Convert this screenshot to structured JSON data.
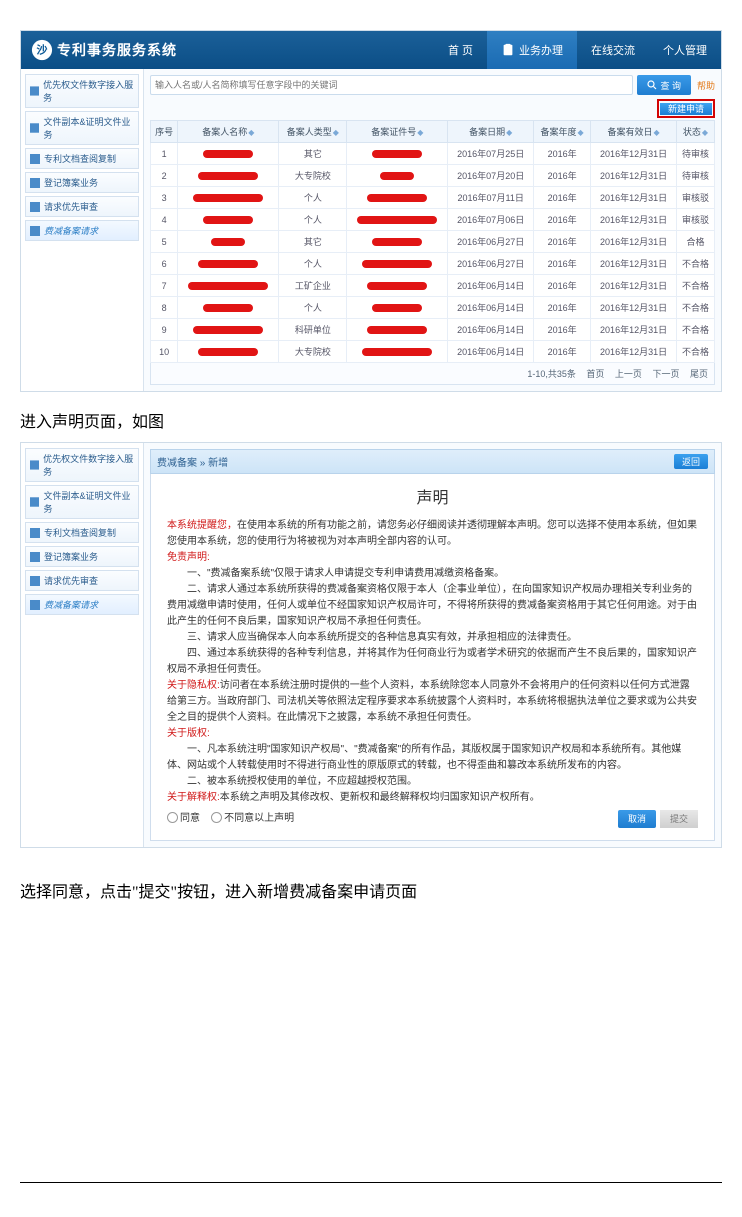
{
  "header": {
    "system_title": "专利事务服务系统",
    "nav": [
      "首 页",
      "业务办理",
      "在线交流",
      "个人管理"
    ],
    "active_nav_index": 1
  },
  "sidebar": {
    "items": [
      "优先权文件数字接入服务",
      "文件副本&证明文件业务",
      "专利文档查阅复制",
      "登记簿案业务",
      "请求优先审查",
      "费减备案请求"
    ],
    "active_index": 5
  },
  "search": {
    "placeholder": "输入人名或/人名简称填写任意字段中的关键词",
    "btn": "查 询",
    "help": "帮助"
  },
  "new_btn": "新建申请",
  "table": {
    "columns": [
      "序号",
      "备案人名称",
      "备案人类型",
      "备案证件号",
      "备案日期",
      "备案年度",
      "备案有效日",
      "状态"
    ],
    "rows": [
      {
        "idx": "1",
        "type": "其它",
        "date": "2016年07月25日",
        "year": "2016年",
        "valid": "2016年12月31日",
        "status": "待审核"
      },
      {
        "idx": "2",
        "type": "大专院校",
        "date": "2016年07月20日",
        "year": "2016年",
        "valid": "2016年12月31日",
        "status": "待审核"
      },
      {
        "idx": "3",
        "type": "个人",
        "date": "2016年07月11日",
        "year": "2016年",
        "valid": "2016年12月31日",
        "status": "审核驳"
      },
      {
        "idx": "4",
        "type": "个人",
        "date": "2016年07月06日",
        "year": "2016年",
        "valid": "2016年12月31日",
        "status": "审核驳"
      },
      {
        "idx": "5",
        "type": "其它",
        "date": "2016年06月27日",
        "year": "2016年",
        "valid": "2016年12月31日",
        "status": "合格"
      },
      {
        "idx": "6",
        "type": "个人",
        "date": "2016年06月27日",
        "year": "2016年",
        "valid": "2016年12月31日",
        "status": "不合格"
      },
      {
        "idx": "7",
        "type": "工矿企业",
        "date": "2016年06月14日",
        "year": "2016年",
        "valid": "2016年12月31日",
        "status": "不合格"
      },
      {
        "idx": "8",
        "type": "个人",
        "date": "2016年06月14日",
        "year": "2016年",
        "valid": "2016年12月31日",
        "status": "不合格"
      },
      {
        "idx": "9",
        "type": "科研单位",
        "date": "2016年06月14日",
        "year": "2016年",
        "valid": "2016年12月31日",
        "status": "不合格"
      },
      {
        "idx": "10",
        "type": "大专院校",
        "date": "2016年06月14日",
        "year": "2016年",
        "valid": "2016年12月31日",
        "status": "不合格"
      }
    ],
    "footer": {
      "range": "1-10,共35条",
      "first": "首页",
      "prev": "上一页",
      "next": "下一页",
      "last": "尾页"
    }
  },
  "caption1": "进入声明页面，如图",
  "panel2": {
    "crumb": "费减备案 » 新增",
    "back": "返回",
    "title": "声明",
    "line_sys_red": "本系统提醒您，",
    "line_sys_rest": "在使用本系统的所有功能之前，请您务必仔细阅读并透彻理解本声明。您可以选择不使用本系统，但如果您使用本系统，您的使用行为将被视为对本声明全部内容的认可。",
    "free_title": "免责声明:",
    "p1": "一、\"费减备案系统\"仅限于请求人申请提交专利申请费用减缴资格备案。",
    "p2": "二、请求人通过本系统所获得的费减备案资格仅限于本人（企事业单位），在向国家知识产权局办理相关专利业务的费用减缴申请时使用，任何人或单位不经国家知识产权局许可，不得将所获得的费减备案资格用于其它任何用途。对于由此产生的任何不良后果，国家知识产权局不承担任何责任。",
    "p3": "三、请求人应当确保本人向本系统所提交的各种信息真实有效，并承担相应的法律责任。",
    "p4": "四、通过本系统获得的各种专利信息，并将其作为任何商业行为或者学术研究的依据而产生不良后果的，国家知识产权局不承担任何责任。",
    "priv_title": "关于隐私权:",
    "priv_body": "访问者在本系统注册时提供的一些个人资料，本系统除您本人同意外不会将用户的任何资料以任何方式泄露给第三方。当政府部门、司法机关等依照法定程序要求本系统披露个人资料时，本系统将根据执法单位之要求或为公共安全之目的提供个人资料。在此情况下之披露，本系统不承担任何责任。",
    "copy_title": "关于版权:",
    "copy_p1": "一、凡本系统注明\"国家知识产权局\"、\"费减备案\"的所有作品，其版权属于国家知识产权局和本系统所有。其他媒体、网站或个人转载使用时不得进行商业性的原版原式的转载，也不得歪曲和篡改本系统所发布的内容。",
    "copy_p2": "二、被本系统授权使用的单位，不应超越授权范围。",
    "interp_title": "关于解释权:",
    "interp_body": "本系统之声明及其修改权、更新权和最终解释权均归国家知识产权所有。",
    "agree": "同意",
    "disagree": "不同意以上声明",
    "cancel": "取消",
    "submit": "提交"
  },
  "caption2": "选择同意，点击\"提交\"按钮，进入新增费减备案申请页面"
}
